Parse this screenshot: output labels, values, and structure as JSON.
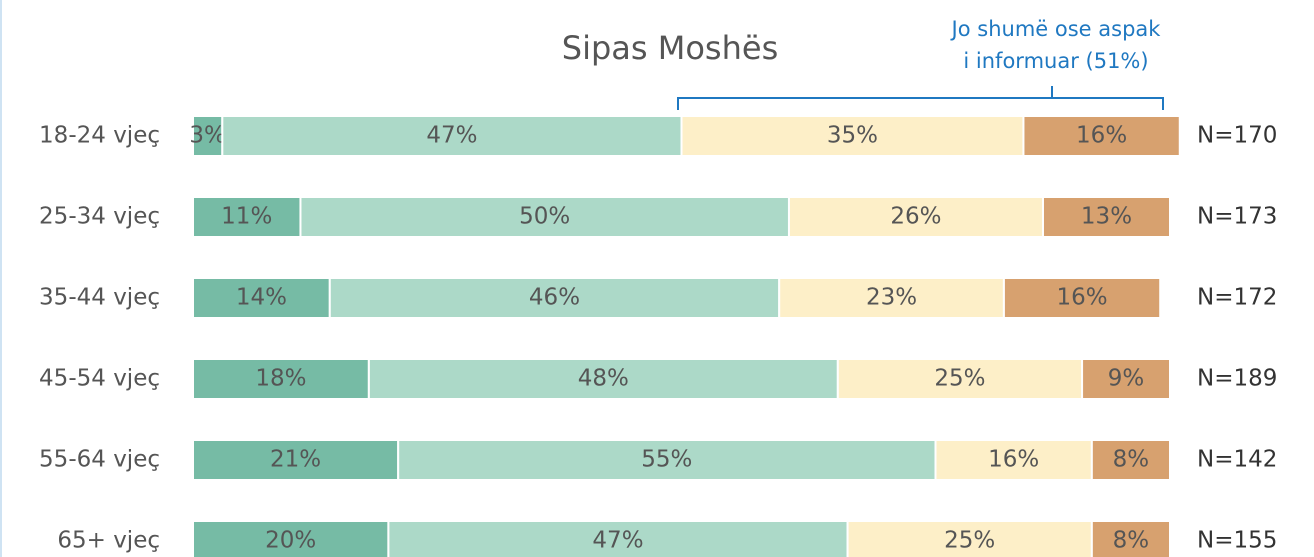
{
  "chart_data": {
    "type": "stacked-bar-horizontal",
    "title": "Sipas Moshës",
    "annotation": [
      "Jo shumë ose aspak",
      "i informuar (51%)"
    ],
    "categories": [
      "18-24 vjeç",
      "25-34 vjeç",
      "35-44 vjeç",
      "45-54 vjeç",
      "55-64 vjeç",
      "65+ vjeç"
    ],
    "n_labels": [
      "N=170",
      "N=173",
      "N=172",
      "N=189",
      "N=142",
      "N=155"
    ],
    "series": [
      {
        "color": "#76bba5",
        "values": [
          3,
          11,
          14,
          18,
          21,
          20
        ],
        "value_labels": [
          "3%",
          "11%",
          "14%",
          "18%",
          "21%",
          "20%"
        ]
      },
      {
        "color": "#acd9c8",
        "values": [
          47,
          50,
          46,
          48,
          55,
          47
        ],
        "value_labels": [
          "47%",
          "50%",
          "46%",
          "48%",
          "55%",
          "47%"
        ]
      },
      {
        "color": "#fdefc8",
        "values": [
          35,
          26,
          23,
          25,
          16,
          25
        ],
        "value_labels": [
          "35%",
          "26%",
          "23%",
          "25%",
          "16%",
          "25%"
        ]
      },
      {
        "color": "#d7a16f",
        "values": [
          16,
          13,
          16,
          9,
          8,
          8
        ],
        "value_labels": [
          "16%",
          "13%",
          "16%",
          "9%",
          "8%",
          "8%"
        ]
      }
    ]
  }
}
